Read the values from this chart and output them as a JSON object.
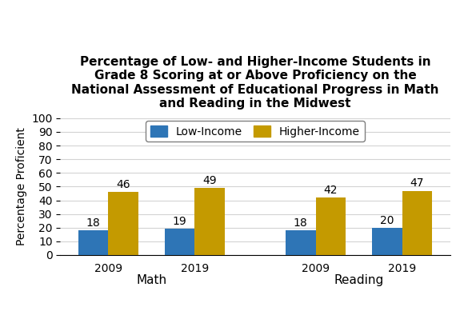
{
  "title": "Percentage of Low- and Higher-Income Students in\nGrade 8 Scoring at or Above Proficiency on the\nNational Assessment of Educational Progress in Math\nand Reading in the Midwest",
  "ylabel": "Percentage Proficient",
  "groups": [
    "Math",
    "Reading"
  ],
  "years": [
    "2009",
    "2019"
  ],
  "low_income": [
    18,
    19,
    18,
    20
  ],
  "higher_income": [
    46,
    49,
    42,
    47
  ],
  "low_color": "#2E75B6",
  "high_color": "#C49A00",
  "ylim": [
    0,
    100
  ],
  "yticks": [
    0,
    10,
    20,
    30,
    40,
    50,
    60,
    70,
    80,
    90,
    100
  ],
  "legend_labels": [
    "Low-Income",
    "Higher-Income"
  ],
  "bar_width": 0.35,
  "group_label_fontsize": 11,
  "title_fontsize": 11,
  "ylabel_fontsize": 10,
  "tick_fontsize": 10,
  "label_fontsize": 10,
  "legend_fontsize": 10
}
